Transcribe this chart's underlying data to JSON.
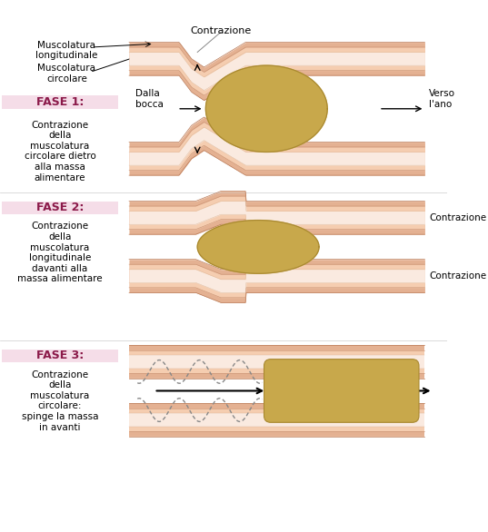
{
  "bg_color": "#ffffff",
  "tube_outer_color": "#e8b89a",
  "tube_inner_color": "#f5cdb0",
  "tube_texture_color": "#d4956e",
  "tube_lumen_color": "#f9e8dc",
  "bolus_color": "#c8a84b",
  "bolus_edge_color": "#a88830",
  "constrict_color": "#d4956e",
  "white_layer": "#f5e8e0",
  "fase1_label": "FASE 1:",
  "fase1_text": "Contrazione\ndella\nmuscolatura\ncircolare dietro\nalla massa\nalimentare",
  "fase2_label": "FASE 2:",
  "fase2_text": "Contrazione\ndella\nmuscolatura\nlongitudinale\ndavanti alla\nmassa alimentare",
  "fase3_label": "FASE 3:",
  "fase3_text": "Contrazione\ndella\nmuscolatura\ncircolare:\nspinge la massa\nin avanti",
  "label_color": "#8b1a4a",
  "label_bg": "#f5e0e8",
  "text_color": "#222222",
  "ann_fontsize": 7.5,
  "label_fontsize": 8.5,
  "fase_bg_alpha": 0.3
}
